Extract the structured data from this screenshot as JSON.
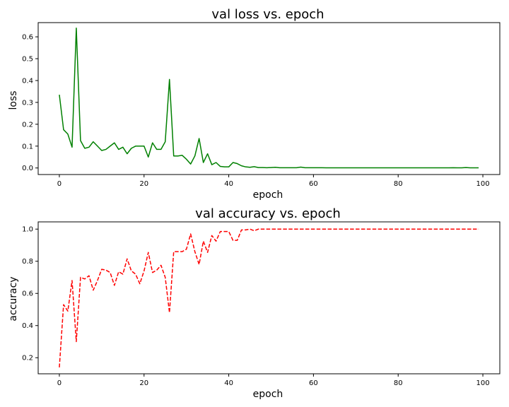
{
  "chart_data": [
    {
      "type": "line",
      "title": "val loss vs. epoch",
      "xlabel": "epoch",
      "ylabel": "loss",
      "xlim": [
        -5,
        104
      ],
      "ylim": [
        -0.03,
        0.665
      ],
      "xticks": [
        0,
        20,
        40,
        60,
        80,
        100
      ],
      "yticks": [
        0.0,
        0.1,
        0.2,
        0.3,
        0.4,
        0.5,
        0.6
      ],
      "grid": false,
      "series": [
        {
          "color": "#008000",
          "linestyle": "solid",
          "values": [
            0.335,
            0.175,
            0.155,
            0.095,
            0.64,
            0.125,
            0.09,
            0.095,
            0.12,
            0.1,
            0.08,
            0.085,
            0.1,
            0.115,
            0.085,
            0.095,
            0.065,
            0.09,
            0.1,
            0.1,
            0.1,
            0.05,
            0.115,
            0.085,
            0.085,
            0.12,
            0.405,
            0.055,
            0.055,
            0.058,
            0.04,
            0.018,
            0.055,
            0.135,
            0.025,
            0.065,
            0.015,
            0.025,
            0.007,
            0.005,
            0.005,
            0.025,
            0.02,
            0.01,
            0.005,
            0.003,
            0.006,
            0.002,
            0.002,
            0.001,
            0.002,
            0.003,
            0.001,
            0.001,
            0.001,
            0.001,
            0.001,
            0.004,
            0.001,
            0.001,
            0.001,
            0.001,
            0.001,
            0.0005,
            0.0005,
            0.0005,
            0.0005,
            0.0005,
            0.0005,
            0.0005,
            0.0005,
            0.0005,
            0.0005,
            0.0005,
            0.0005,
            0.0005,
            0.0005,
            0.0005,
            0.0005,
            0.0005,
            0.0005,
            0.0005,
            0.0005,
            0.0005,
            0.0005,
            0.0005,
            0.0005,
            0.0005,
            0.0005,
            0.0005,
            0.0005,
            0.0005,
            0.0005,
            0.001,
            0.0005,
            0.0005,
            0.002,
            0.0005,
            0.0005,
            0.0005
          ]
        }
      ]
    },
    {
      "type": "line",
      "title": "val accuracy vs. epoch",
      "xlabel": "epoch",
      "ylabel": "accuracy",
      "xlim": [
        -5,
        104
      ],
      "ylim": [
        0.1,
        1.045
      ],
      "xticks": [
        0,
        20,
        40,
        60,
        80,
        100
      ],
      "yticks": [
        0.2,
        0.4,
        0.6,
        0.8,
        1.0
      ],
      "grid": false,
      "series": [
        {
          "color": "#ff0000",
          "linestyle": "dashed",
          "values": [
            0.14,
            0.53,
            0.49,
            0.68,
            0.3,
            0.7,
            0.69,
            0.71,
            0.62,
            0.68,
            0.75,
            0.745,
            0.73,
            0.65,
            0.735,
            0.72,
            0.815,
            0.74,
            0.72,
            0.66,
            0.74,
            0.855,
            0.73,
            0.745,
            0.775,
            0.7,
            0.48,
            0.86,
            0.86,
            0.86,
            0.875,
            0.97,
            0.86,
            0.78,
            0.925,
            0.855,
            0.96,
            0.925,
            0.985,
            0.985,
            0.985,
            0.93,
            0.93,
            0.995,
            0.995,
            1.0,
            0.99,
            1.0,
            1.0,
            1.0,
            1.0,
            1.0,
            1.0,
            1.0,
            1.0,
            1.0,
            1.0,
            1.0,
            1.0,
            1.0,
            1.0,
            1.0,
            1.0,
            1.0,
            1.0,
            1.0,
            1.0,
            1.0,
            1.0,
            1.0,
            1.0,
            1.0,
            1.0,
            1.0,
            1.0,
            1.0,
            1.0,
            1.0,
            1.0,
            1.0,
            1.0,
            1.0,
            1.0,
            1.0,
            1.0,
            1.0,
            1.0,
            1.0,
            1.0,
            1.0,
            1.0,
            1.0,
            1.0,
            1.0,
            1.0,
            1.0,
            1.0,
            1.0,
            1.0,
            1.0
          ]
        }
      ]
    }
  ]
}
